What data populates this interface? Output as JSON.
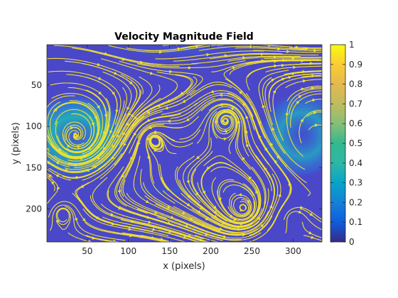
{
  "chart_data": {
    "type": "streamline",
    "title": "Velocity Magnitude Field",
    "xlabel": "x (pixels)",
    "ylabel": "y (pixels)",
    "xlim": [
      1,
      335
    ],
    "ylim": [
      1,
      240
    ],
    "y_reversed": true,
    "x_ticks": [
      50,
      100,
      150,
      200,
      250,
      300
    ],
    "y_ticks": [
      50,
      100,
      150,
      200
    ],
    "colorbar": {
      "range": [
        0,
        1
      ],
      "ticks": [
        0,
        0.1,
        0.2,
        0.3,
        0.4,
        0.5,
        0.6,
        0.7,
        0.8,
        0.9,
        1
      ],
      "tick_labels": [
        "0",
        "0.1",
        "0.2",
        "0.3",
        "0.4",
        "0.5",
        "0.6",
        "0.7",
        "0.8",
        "0.9",
        "1"
      ],
      "colormap": "parula"
    },
    "streamline_color": "#f0e030",
    "background_color": "#4a47c8",
    "vortices": [
      {
        "x": 36,
        "y": 112,
        "sense": "cw",
        "strength": 0.55
      },
      {
        "x": 218,
        "y": 92,
        "sense": "ccw",
        "strength": 0.35
      },
      {
        "x": 330,
        "y": 115,
        "sense": "cw",
        "strength": 0.5
      },
      {
        "x": 240,
        "y": 200,
        "sense": "ccw",
        "strength": 0.25
      },
      {
        "x": 130,
        "y": 115,
        "sense": "ccw",
        "strength": 0.2
      },
      {
        "x": 20,
        "y": 205,
        "sense": "cw",
        "strength": 0.15
      },
      {
        "x": 300,
        "y": 210,
        "sense": "cw",
        "strength": 0.15
      }
    ]
  }
}
